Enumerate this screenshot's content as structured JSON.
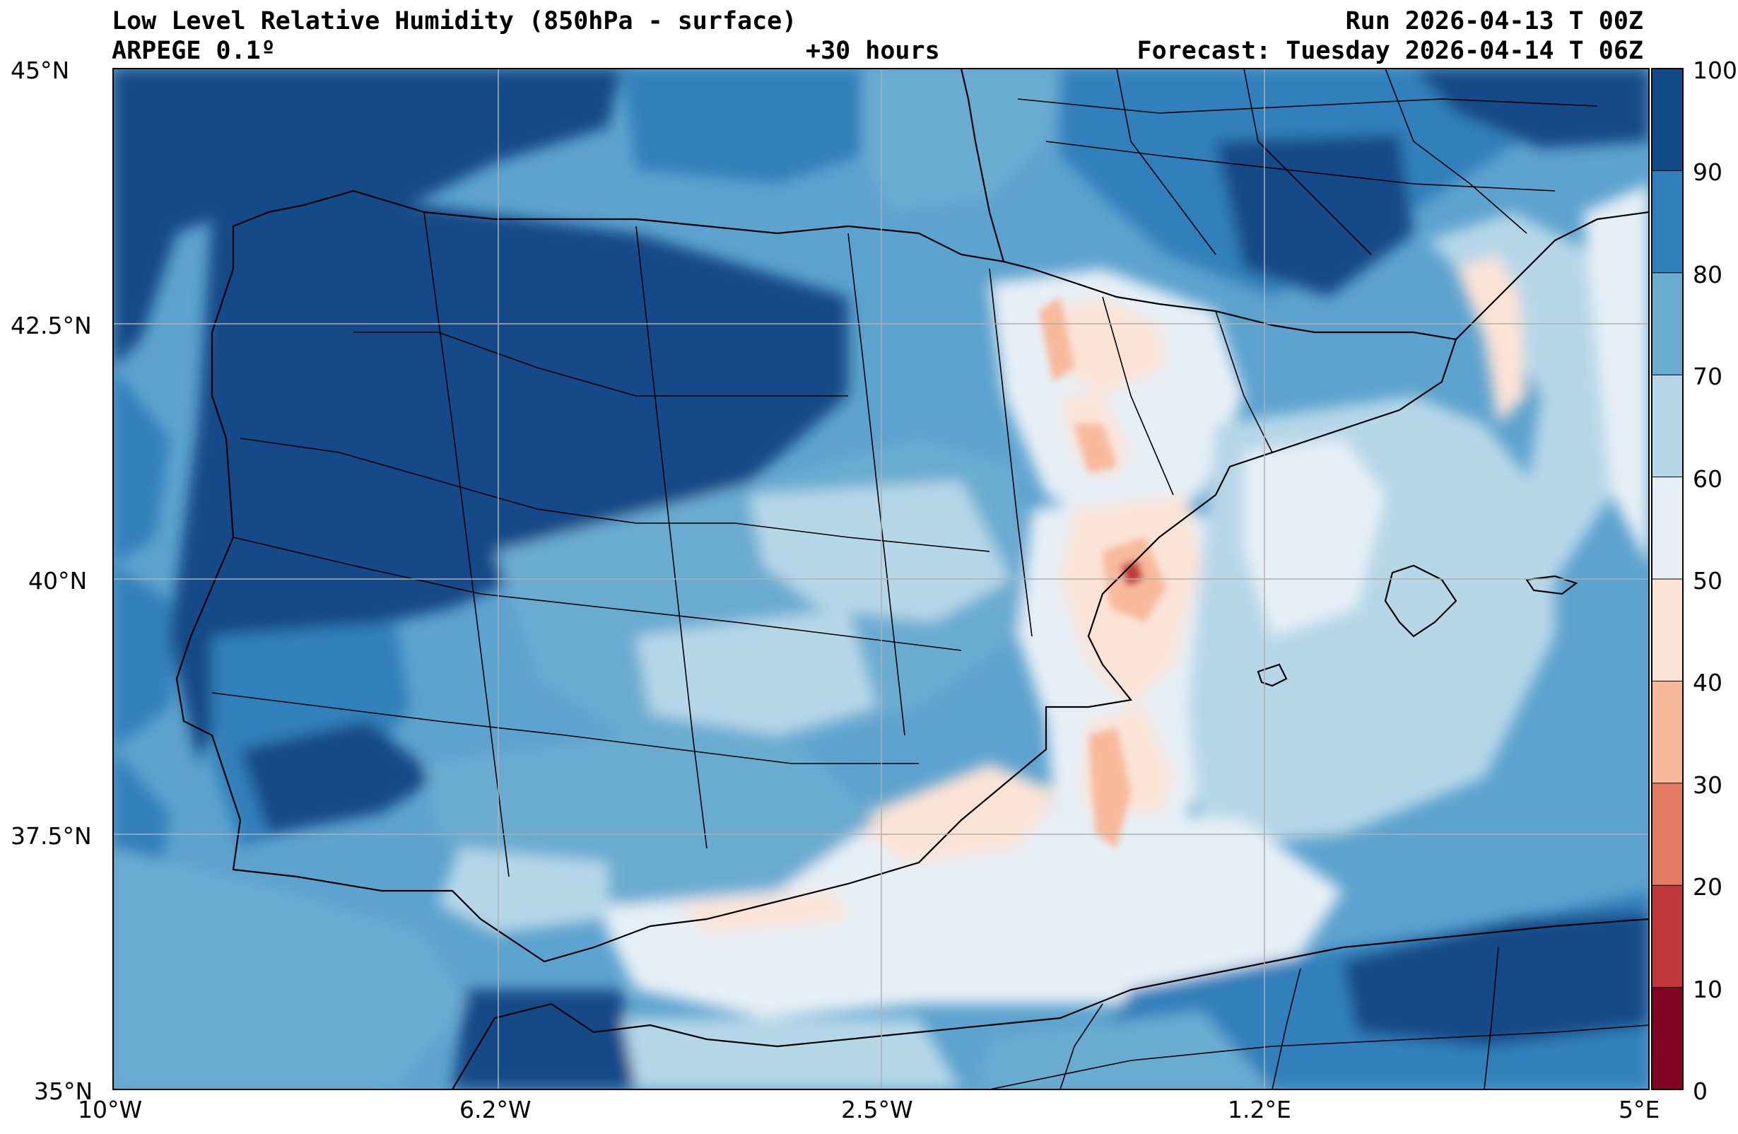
{
  "header": {
    "title": "Low Level Relative Humidity (850hPa - surface)",
    "model": "ARPEGE 0.1º",
    "lead": "+30 hours",
    "run": "Run 2026-04-13 T 00Z",
    "forecast": "Forecast: Tuesday 2026-04-14 T 06Z"
  },
  "axes": {
    "lat_labels": [
      "45°N",
      "42.5°N",
      "40°N",
      "37.5°N",
      "35°N"
    ],
    "lon_labels": [
      "10°W",
      "6.2°W",
      "2.5°W",
      "1.2°E",
      "5°E"
    ],
    "lat_range": [
      35,
      45
    ],
    "lon_range": [
      -10,
      5
    ],
    "grid": true
  },
  "colorbar": {
    "labels": [
      "100",
      "90",
      "80",
      "70",
      "60",
      "50",
      "40",
      "30",
      "20",
      "10",
      "0"
    ],
    "levels": [
      0,
      10,
      20,
      30,
      40,
      50,
      60,
      70,
      80,
      90,
      100
    ],
    "colors": [
      "#7f0523",
      "#c2383a",
      "#e27b62",
      "#f8b99b",
      "#fbe3d6",
      "#e6eff6",
      "#b6d7e8",
      "#6bacd1",
      "#3280bb",
      "#124a87"
    ]
  },
  "map": {
    "ocean_fill": "#4a93c8",
    "region": "Iberian Peninsula, Balearic Islands, North Africa, Southern France"
  }
}
